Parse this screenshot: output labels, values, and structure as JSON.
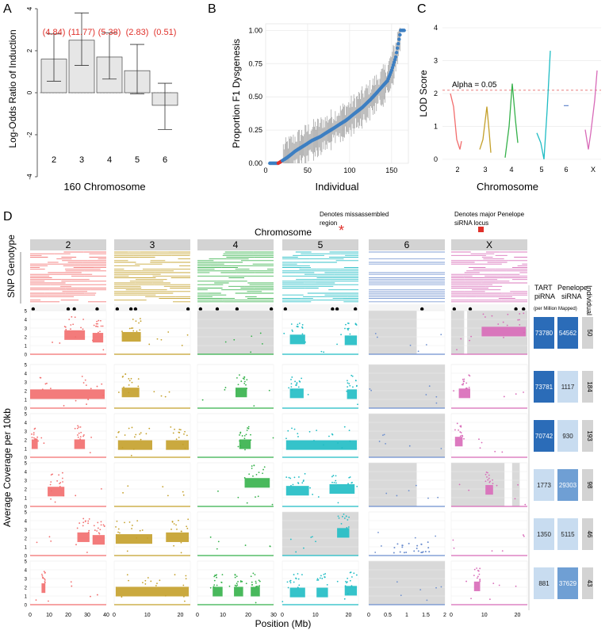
{
  "panel_labels": [
    "A",
    "B",
    "C",
    "D"
  ],
  "colors": {
    "chr2": "#f26d6d",
    "chr3": "#c4a02a",
    "chr4": "#35b14a",
    "chr5": "#1fbcc4",
    "chr6": "#6d8fcf",
    "chrX": "#d86ab8",
    "bar_fill": "#e6e6e6",
    "annotation": "#e0302a",
    "grid": "#ebebeb",
    "strip": "#d3d3d3",
    "shade": "#d9d9d9",
    "heat_high": "#2b6cb8",
    "heat_mid": "#6f9fd4",
    "heat_low": "#c8dcf0"
  },
  "chart_data": [
    {
      "panel": "A",
      "type": "bar",
      "xlabel": "160 Chromosome",
      "ylabel": "Log-Odds Ratio of Induction",
      "ylim": [
        -4,
        4
      ],
      "yticks": [
        -4,
        -2,
        0,
        2,
        4
      ],
      "categories": [
        "2",
        "3",
        "4",
        "5",
        "6"
      ],
      "values": [
        1.6,
        2.5,
        1.7,
        1.05,
        -0.6
      ],
      "err_low": [
        0.55,
        1.3,
        0.65,
        -0.05,
        -1.75
      ],
      "err_high": [
        2.8,
        3.8,
        2.85,
        2.3,
        0.45
      ],
      "annotations": [
        "(4.84)",
        "(11.77)",
        "(5.38)",
        "(2.83)",
        "(0.51)"
      ]
    },
    {
      "panel": "B",
      "type": "scatter",
      "xlabel": "Individual",
      "ylabel": "Proportion F1 Dysgenesis",
      "xlim": [
        0,
        170
      ],
      "ylim": [
        0,
        1.05
      ],
      "xticks": [
        0,
        50,
        100,
        150
      ],
      "yticks": [
        0.0,
        0.25,
        0.5,
        0.75,
        1.0
      ],
      "ytick_labels": [
        "0.00",
        "0.25",
        "0.50",
        "0.75",
        "1.00"
      ],
      "series": [
        {
          "x": [
            5,
            15,
            25,
            35,
            45,
            55,
            65,
            75,
            85,
            95,
            105,
            115,
            125,
            135,
            145,
            150,
            155,
            158,
            161,
            165
          ],
          "y": [
            0.0,
            0.0,
            0.04,
            0.09,
            0.13,
            0.17,
            0.2,
            0.24,
            0.28,
            0.32,
            0.37,
            0.42,
            0.48,
            0.55,
            0.62,
            0.7,
            0.8,
            0.9,
            1.0,
            1.0
          ]
        }
      ]
    },
    {
      "panel": "C",
      "type": "line",
      "xlabel": "Chromosome",
      "ylabel": "LOD Score",
      "ylim": [
        0,
        4
      ],
      "yticks": [
        0,
        1,
        2,
        3,
        4
      ],
      "categories": [
        "2",
        "3",
        "4",
        "5",
        "6",
        "X"
      ],
      "threshold": 2.1,
      "threshold_label": "Alpha = 0.05"
    },
    {
      "panel": "D",
      "type": "scatter",
      "title": "Chromosome",
      "xlabel": "Position (Mb)",
      "ylabel": "Average Coverage per 10kb",
      "strip_label": "SNP Genotype",
      "chromosomes": [
        "2",
        "3",
        "4",
        "5",
        "6",
        "X"
      ],
      "ylim": [
        0,
        5
      ],
      "yticks": [
        0,
        1,
        2,
        3,
        4,
        5
      ],
      "x_ticks": [
        [
          "0",
          "10",
          "20",
          "30",
          "40"
        ],
        [
          "0",
          "10",
          "20"
        ],
        [
          "0",
          "10",
          "20",
          "30"
        ],
        [
          "0",
          "10",
          "20"
        ],
        [
          "0",
          "0.5",
          "1",
          "1.5",
          "2"
        ],
        [
          "0",
          "10",
          "20"
        ]
      ],
      "individuals": [
        "50",
        "184",
        "193",
        "98",
        "46",
        "43"
      ],
      "tart_pirna": [
        "73780",
        "73781",
        "70742",
        "1773",
        "1350",
        "881"
      ],
      "penelope_sirna": [
        "54562",
        "1117",
        "930",
        "29303",
        "5115",
        "37629"
      ],
      "side_headers": {
        "tart": "TART piRNA",
        "units": "(per Million Mapped)",
        "penelope": "Penelope siRNA",
        "individual": "Individual"
      },
      "legend": {
        "star": "Denotes missassembled region",
        "square": "Denotes major Penelope siRNA locus"
      }
    }
  ]
}
